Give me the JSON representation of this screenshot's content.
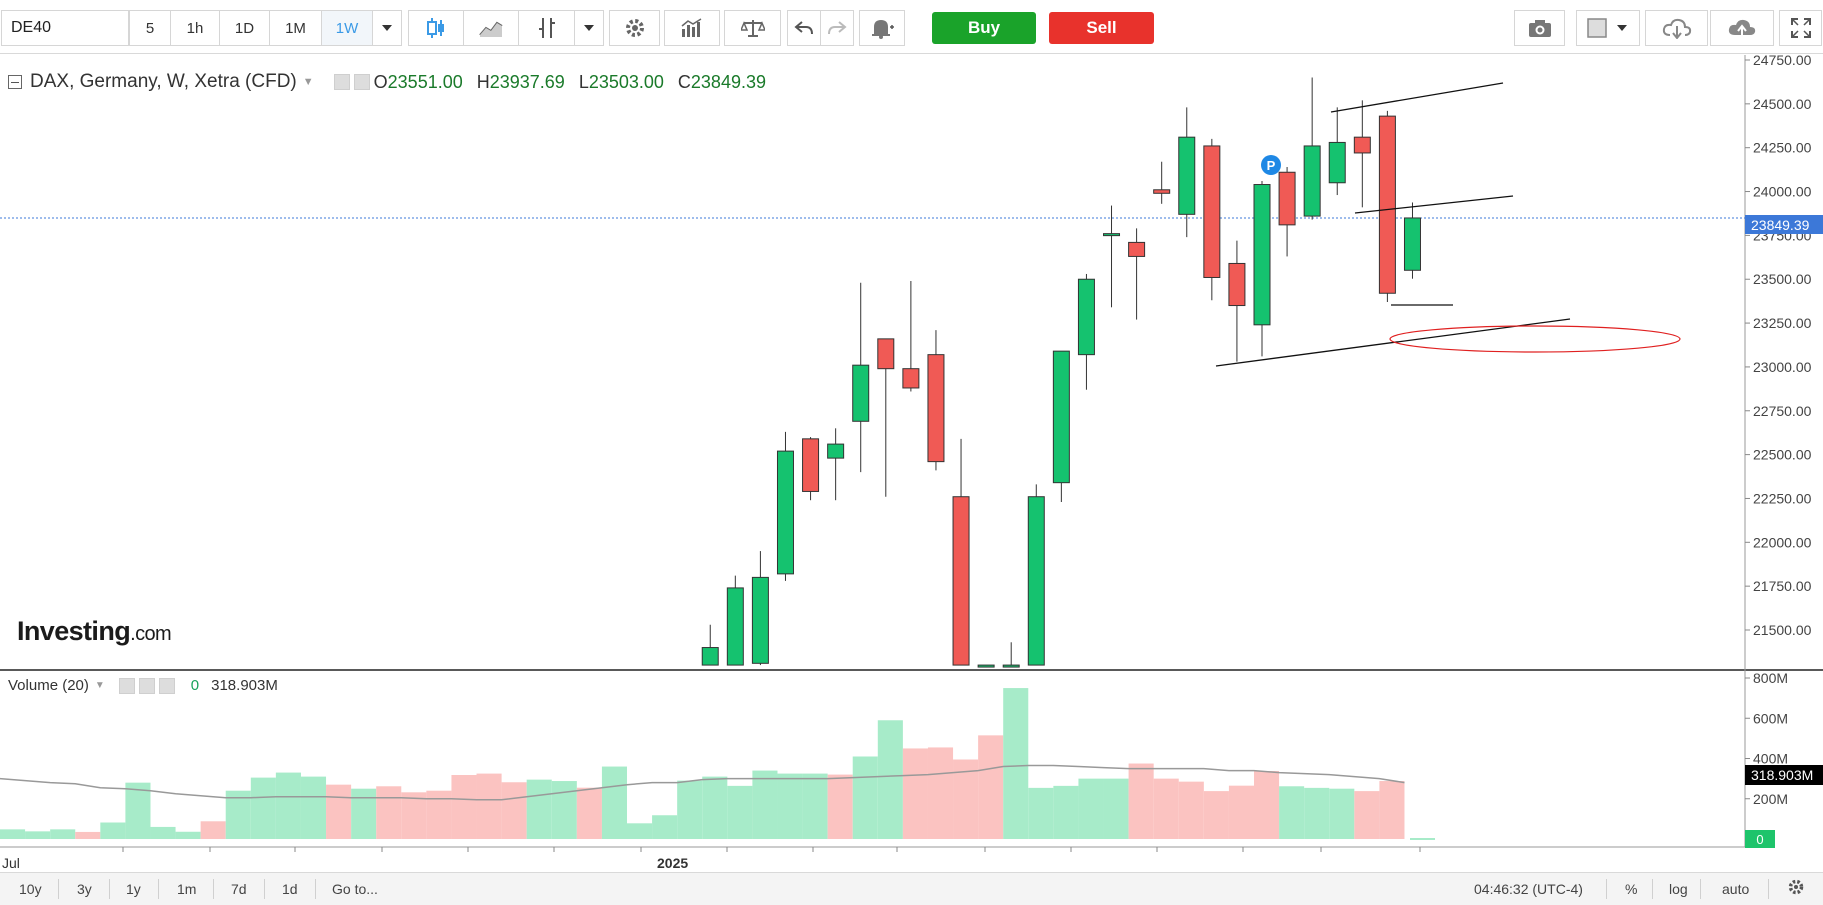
{
  "toolbar": {
    "symbol": "DE40",
    "intervals": [
      "5",
      "1h",
      "1D",
      "1M",
      "1W"
    ],
    "active_interval": "1W",
    "buy_label": "Buy",
    "sell_label": "Sell",
    "icons": [
      "dropdown-icon",
      "candles-icon",
      "line-chart-icon",
      "indicator-icon",
      "dropdown-icon",
      "settings-icon",
      "bars-icon",
      "compare-icon",
      "undo-icon",
      "redo-icon",
      "alert-icon",
      "camera-icon",
      "color-icon",
      "dropdown-icon",
      "cloud-download-icon",
      "cloud-upload-icon",
      "fullscreen-icon"
    ]
  },
  "legend": {
    "title": "DAX, Germany, W, Xetra (CFD)",
    "o_label": "O",
    "o_value": "23551.00",
    "h_label": "H",
    "h_value": "23937.69",
    "l_label": "L",
    "l_value": "23503.00",
    "c_label": "C",
    "c_value": "23849.39"
  },
  "watermark": {
    "text": "Investing",
    "suffix": ".com"
  },
  "volume_legend": {
    "title": "Volume (20)",
    "value_zero": "0",
    "value": "318.903M"
  },
  "price_tag": "23849.39",
  "volume_tag": "318.903M",
  "volume_zero_tag": "0",
  "pivot_marker": "P",
  "time_axis": {
    "left_label": "Jul",
    "year_label": "2025"
  },
  "bottom_bar": {
    "ranges": [
      "10y",
      "3y",
      "1y",
      "1m",
      "7d",
      "1d"
    ],
    "goto": "Go to...",
    "clock": "04:46:32 (UTC-4)",
    "pct": "%",
    "log": "log",
    "auto": "auto"
  },
  "colors": {
    "up": "#15c26f",
    "down": "#f05a55",
    "vol_up": "#a7ebc9",
    "vol_down": "#fbc3c1",
    "accent": "#3c78d8"
  },
  "chart_data": {
    "type": "candlestick",
    "title": "DAX, Germany, W, Xetra (CFD)",
    "price_axis": {
      "ticks": [
        24750,
        24500,
        24250,
        24000,
        23750,
        23500,
        23250,
        23000,
        22750,
        22500,
        22250,
        22000,
        21750,
        21500
      ],
      "tick_labels": [
        "24750.00",
        "24500.00",
        "24250.00",
        "24000.00",
        "23750.00",
        "23500.00",
        "23250.00",
        "23000.00",
        "22750.00",
        "22500.00",
        "22250.00",
        "22000.00",
        "21750.00",
        "21500.00"
      ],
      "range": [
        21300,
        24900
      ]
    },
    "volume_axis": {
      "ticks": [
        800,
        600,
        400,
        200
      ],
      "tick_labels": [
        "800M",
        "600M",
        "400M",
        "200M"
      ],
      "range": [
        0,
        850
      ]
    },
    "candles": [
      {
        "i": 28,
        "o": 21300,
        "h": 21530,
        "l": 21300,
        "c": 21400
      },
      {
        "i": 29,
        "o": 21300,
        "h": 21810,
        "l": 21300,
        "c": 21740
      },
      {
        "i": 30,
        "o": 21310,
        "h": 21950,
        "l": 21300,
        "c": 21800
      },
      {
        "i": 31,
        "o": 21820,
        "h": 22630,
        "l": 21780,
        "c": 22520
      },
      {
        "i": 32,
        "o": 22590,
        "h": 22600,
        "l": 22240,
        "c": 22290
      },
      {
        "i": 33,
        "o": 22480,
        "h": 22650,
        "l": 22240,
        "c": 22560
      },
      {
        "i": 34,
        "o": 22690,
        "h": 23480,
        "l": 22400,
        "c": 23010
      },
      {
        "i": 35,
        "o": 23160,
        "h": 23160,
        "l": 22260,
        "c": 22990
      },
      {
        "i": 36,
        "o": 22990,
        "h": 23490,
        "l": 22860,
        "c": 22880
      },
      {
        "i": 37,
        "o": 23070,
        "h": 23210,
        "l": 22410,
        "c": 22460
      },
      {
        "i": 38,
        "o": 22260,
        "h": 22590,
        "l": 21300,
        "c": 21300
      },
      {
        "i": 39,
        "o": 21300,
        "h": 21300,
        "l": 21300,
        "c": 21300
      },
      {
        "i": 40,
        "o": 21300,
        "h": 21430,
        "l": 21300,
        "c": 21300
      },
      {
        "i": 41,
        "o": 21300,
        "h": 22330,
        "l": 21300,
        "c": 22260
      },
      {
        "i": 42,
        "o": 22340,
        "h": 23090,
        "l": 22230,
        "c": 23090
      },
      {
        "i": 43,
        "o": 23070,
        "h": 23530,
        "l": 22870,
        "c": 23500
      },
      {
        "i": 44,
        "o": 23760,
        "h": 23920,
        "l": 23340,
        "c": 23760
      },
      {
        "i": 45,
        "o": 23710,
        "h": 23790,
        "l": 23270,
        "c": 23630
      },
      {
        "i": 46,
        "o": 24010,
        "h": 24170,
        "l": 23930,
        "c": 23990
      },
      {
        "i": 47,
        "o": 23870,
        "h": 24480,
        "l": 23740,
        "c": 24310
      },
      {
        "i": 48,
        "o": 24260,
        "h": 24300,
        "l": 23380,
        "c": 23510
      },
      {
        "i": 49,
        "o": 23590,
        "h": 23720,
        "l": 23030,
        "c": 23350
      },
      {
        "i": 50,
        "o": 23240,
        "h": 24060,
        "l": 23060,
        "c": 24040
      },
      {
        "i": 51,
        "o": 24110,
        "h": 24140,
        "l": 23630,
        "c": 23810
      },
      {
        "i": 52,
        "o": 23860,
        "h": 24650,
        "l": 23840,
        "c": 24260
      },
      {
        "i": 53,
        "o": 24050,
        "h": 24480,
        "l": 23980,
        "c": 24280
      },
      {
        "i": 54,
        "o": 24310,
        "h": 24520,
        "l": 23910,
        "c": 24220
      },
      {
        "i": 55,
        "o": 24430,
        "h": 24460,
        "l": 23370,
        "c": 23420
      },
      {
        "i": 56,
        "o": 23551,
        "h": 23937.69,
        "l": 23503,
        "c": 23849.39
      }
    ],
    "volume_series": {
      "name": "Volume (20)",
      "values": [
        48,
        38,
        48,
        35,
        82,
        280,
        60,
        36,
        88,
        240,
        305,
        330,
        310,
        270,
        250,
        262,
        232,
        240,
        318,
        325,
        282,
        295,
        288,
        255,
        360,
        78,
        118,
        290,
        310,
        264,
        340,
        325,
        325,
        320,
        410,
        590,
        450,
        455,
        395,
        515,
        750,
        254,
        264,
        300,
        300,
        375,
        300,
        285,
        238,
        265,
        338,
        262,
        254,
        250,
        238,
        288,
        0
      ]
    },
    "volume_ma_values": [
      300,
      290,
      280,
      275,
      255,
      250,
      240,
      225,
      215,
      205,
      205,
      210,
      210,
      210,
      205,
      205,
      205,
      200,
      200,
      195,
      195,
      210,
      225,
      240,
      255,
      270,
      280,
      280,
      295,
      300,
      300,
      300,
      300,
      300,
      305,
      310,
      315,
      320,
      330,
      340,
      360,
      365,
      365,
      360,
      355,
      350,
      350,
      350,
      350,
      340,
      340,
      330,
      325,
      320,
      310,
      300,
      280
    ],
    "trendlines_note": "upper channel, middle line and lower support line drawn on price chart; red ellipse target zone near 23200",
    "grid": false,
    "legend_position": "top-left"
  }
}
